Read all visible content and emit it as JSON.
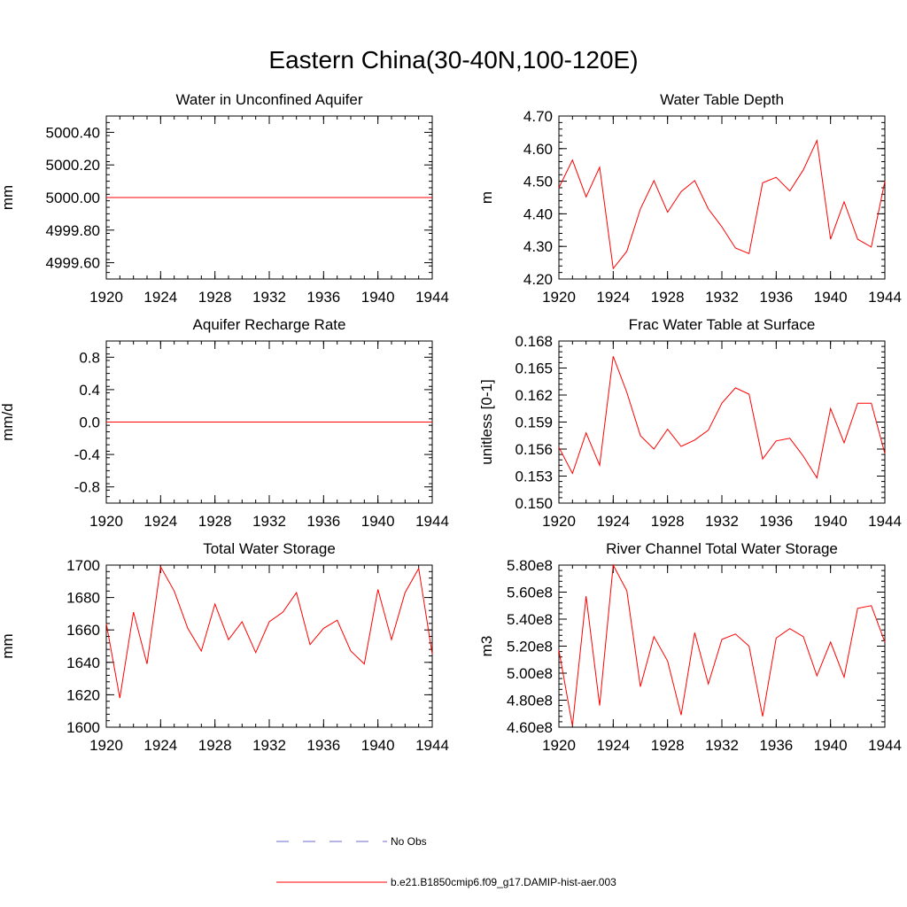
{
  "figure": {
    "title": "Eastern China(30-40N,100-120E)",
    "colors": {
      "series": "#ff0000",
      "obs": "#6a6acd",
      "axis": "#000000"
    }
  },
  "legend": {
    "items": [
      {
        "label": "No Obs",
        "style": "dashed",
        "color": "#6a6acd"
      },
      {
        "label": "b.e21.B1850cmip6.f09_g17.DAMIP-hist-aer.003",
        "style": "solid",
        "color": "#ff0000"
      }
    ]
  },
  "chart_data": [
    {
      "type": "line",
      "title": "Water in Unconfined Aquifer",
      "ylabel": "mm",
      "xlim": [
        1920,
        1944
      ],
      "ylim": [
        4999.5,
        5000.5
      ],
      "xticks": [
        1920,
        1924,
        1928,
        1932,
        1936,
        1940,
        1944
      ],
      "yticks": [
        4999.6,
        4999.8,
        5000.0,
        5000.2,
        5000.4
      ],
      "ytick_labels": [
        "4999.60",
        "4999.80",
        "5000.00",
        "5000.20",
        "5000.40"
      ],
      "x": [
        1920,
        1921,
        1922,
        1923,
        1924,
        1925,
        1926,
        1927,
        1928,
        1929,
        1930,
        1931,
        1932,
        1933,
        1934,
        1935,
        1936,
        1937,
        1938,
        1939,
        1940,
        1941,
        1942,
        1943,
        1944
      ],
      "series": [
        {
          "values": [
            5000,
            5000,
            5000,
            5000,
            5000,
            5000,
            5000,
            5000,
            5000,
            5000,
            5000,
            5000,
            5000,
            5000,
            5000,
            5000,
            5000,
            5000,
            5000,
            5000,
            5000,
            5000,
            5000,
            5000,
            5000
          ]
        }
      ]
    },
    {
      "type": "line",
      "title": "Water Table Depth",
      "ylabel": "m",
      "xlim": [
        1920,
        1944
      ],
      "ylim": [
        4.2,
        4.7
      ],
      "xticks": [
        1920,
        1924,
        1928,
        1932,
        1936,
        1940,
        1944
      ],
      "yticks": [
        4.2,
        4.3,
        4.4,
        4.5,
        4.6,
        4.7
      ],
      "ytick_labels": [
        "4.20",
        "4.30",
        "4.40",
        "4.50",
        "4.60",
        "4.70"
      ],
      "x": [
        1920,
        1921,
        1922,
        1923,
        1924,
        1925,
        1926,
        1927,
        1928,
        1929,
        1930,
        1931,
        1932,
        1933,
        1934,
        1935,
        1936,
        1937,
        1938,
        1939,
        1940,
        1941,
        1942,
        1943,
        1944
      ],
      "series": [
        {
          "values": [
            4.48,
            4.565,
            4.452,
            4.543,
            4.232,
            4.285,
            4.415,
            4.502,
            4.405,
            4.468,
            4.502,
            4.415,
            4.36,
            4.295,
            4.278,
            4.495,
            4.512,
            4.47,
            4.535,
            4.625,
            4.322,
            4.437,
            4.322,
            4.298,
            4.5
          ]
        }
      ]
    },
    {
      "type": "line",
      "title": "Aquifer Recharge Rate",
      "ylabel": "mm/d",
      "xlim": [
        1920,
        1944
      ],
      "ylim": [
        -1.0,
        1.0
      ],
      "xticks": [
        1920,
        1924,
        1928,
        1932,
        1936,
        1940,
        1944
      ],
      "yticks": [
        -0.8,
        -0.4,
        0.0,
        0.4,
        0.8
      ],
      "ytick_labels": [
        "-0.8",
        "-0.4",
        "0.0",
        "0.4",
        "0.8"
      ],
      "x": [
        1920,
        1921,
        1922,
        1923,
        1924,
        1925,
        1926,
        1927,
        1928,
        1929,
        1930,
        1931,
        1932,
        1933,
        1934,
        1935,
        1936,
        1937,
        1938,
        1939,
        1940,
        1941,
        1942,
        1943,
        1944
      ],
      "series": [
        {
          "values": [
            0,
            0,
            0,
            0,
            0,
            0,
            0,
            0,
            0,
            0,
            0,
            0,
            0,
            0,
            0,
            0,
            0,
            0,
            0,
            0,
            0,
            0,
            0,
            0,
            0
          ]
        }
      ]
    },
    {
      "type": "line",
      "title": "Frac Water Table at Surface",
      "ylabel": "unitless [0-1]",
      "xlim": [
        1920,
        1944
      ],
      "ylim": [
        0.15,
        0.168
      ],
      "xticks": [
        1920,
        1924,
        1928,
        1932,
        1936,
        1940,
        1944
      ],
      "yticks": [
        0.15,
        0.153,
        0.156,
        0.159,
        0.162,
        0.165,
        0.168
      ],
      "ytick_labels": [
        "0.150",
        "0.153",
        "0.156",
        "0.159",
        "0.162",
        "0.165",
        "0.168"
      ],
      "x": [
        1920,
        1921,
        1922,
        1923,
        1924,
        1925,
        1926,
        1927,
        1928,
        1929,
        1930,
        1931,
        1932,
        1933,
        1934,
        1935,
        1936,
        1937,
        1938,
        1939,
        1940,
        1941,
        1942,
        1943,
        1944
      ],
      "series": [
        {
          "values": [
            0.1562,
            0.1533,
            0.1578,
            0.1542,
            0.1663,
            0.1623,
            0.1575,
            0.156,
            0.1582,
            0.1563,
            0.157,
            0.1581,
            0.1611,
            0.1628,
            0.1621,
            0.1549,
            0.1569,
            0.1572,
            0.1552,
            0.1528,
            0.1605,
            0.1567,
            0.1611,
            0.1611,
            0.1555
          ]
        }
      ]
    },
    {
      "type": "line",
      "title": "Total Water Storage",
      "ylabel": "mm",
      "xlim": [
        1920,
        1944
      ],
      "ylim": [
        1600,
        1700
      ],
      "xticks": [
        1920,
        1924,
        1928,
        1932,
        1936,
        1940,
        1944
      ],
      "yticks": [
        1600,
        1620,
        1640,
        1660,
        1680,
        1700
      ],
      "ytick_labels": [
        "1600",
        "1620",
        "1640",
        "1660",
        "1680",
        "1700"
      ],
      "x": [
        1920,
        1921,
        1922,
        1923,
        1924,
        1925,
        1926,
        1927,
        1928,
        1929,
        1930,
        1931,
        1932,
        1933,
        1934,
        1935,
        1936,
        1937,
        1938,
        1939,
        1940,
        1941,
        1942,
        1943,
        1944
      ],
      "series": [
        {
          "values": [
            1664,
            1618,
            1671,
            1639,
            1699,
            1684,
            1661,
            1647,
            1676,
            1654,
            1665,
            1646,
            1665,
            1671,
            1683,
            1651,
            1661,
            1666,
            1647,
            1639,
            1685,
            1654,
            1683,
            1698,
            1645
          ]
        }
      ]
    },
    {
      "type": "line",
      "title": "River Channel Total Water Storage",
      "ylabel": "m3",
      "xlim": [
        1920,
        1944
      ],
      "ylim": [
        460000000.0,
        580000000.0
      ],
      "xticks": [
        1920,
        1924,
        1928,
        1932,
        1936,
        1940,
        1944
      ],
      "yticks": [
        460000000.0,
        480000000.0,
        500000000.0,
        520000000.0,
        540000000.0,
        560000000.0,
        580000000.0
      ],
      "ytick_labels": [
        "4.60e8",
        "4.80e8",
        "5.00e8",
        "5.20e8",
        "5.40e8",
        "5.60e8",
        "5.80e8"
      ],
      "x": [
        1920,
        1921,
        1922,
        1923,
        1924,
        1925,
        1926,
        1927,
        1928,
        1929,
        1930,
        1931,
        1932,
        1933,
        1934,
        1935,
        1936,
        1937,
        1938,
        1939,
        1940,
        1941,
        1942,
        1943,
        1944
      ],
      "series": [
        {
          "values": [
            517000000.0,
            461000000.0,
            557000000.0,
            476000000.0,
            580000000.0,
            561000000.0,
            490000000.0,
            527000000.0,
            509000000.0,
            469000000.0,
            530000000.0,
            492000000.0,
            525000000.0,
            529000000.0,
            520000000.0,
            468000000.0,
            526000000.0,
            533000000.0,
            527000000.0,
            498000000.0,
            523000000.0,
            497000000.0,
            548000000.0,
            550000000.0,
            523000000.0
          ]
        }
      ]
    }
  ]
}
